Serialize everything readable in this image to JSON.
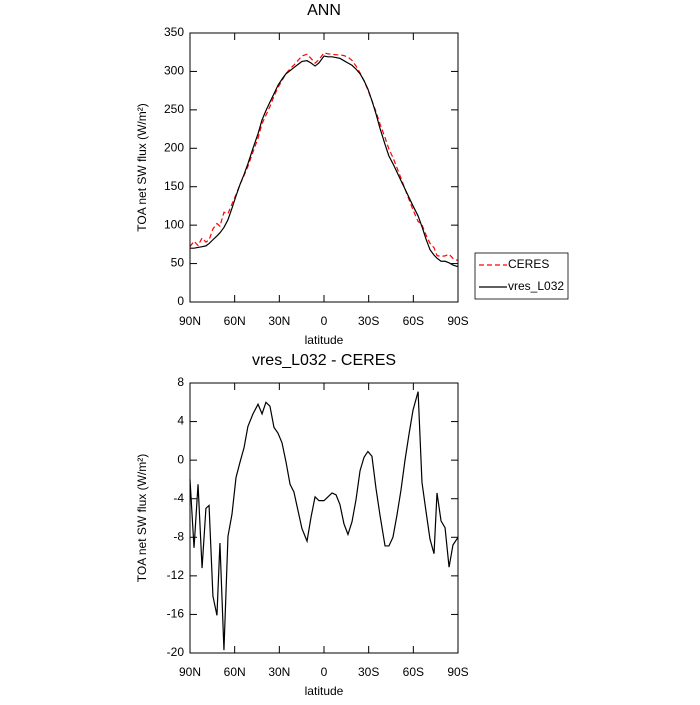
{
  "chart_data": [
    {
      "type": "line",
      "title": "ANN",
      "xlabel": "latitude",
      "ylabel": "TOA net SW flux (W/m²)",
      "x": [
        90,
        87.3,
        84.6,
        81.9,
        79.3,
        77.2,
        74.6,
        71.9,
        69.9,
        67.2,
        64.5,
        61.8,
        59.1,
        56.4,
        53.7,
        51.1,
        47.7,
        44.3,
        41.6,
        39.0,
        36.3,
        33.6,
        30.9,
        28.2,
        25.5,
        22.8,
        20.2,
        17.5,
        14.8,
        11.4,
        8.7,
        6.0,
        3.4,
        0,
        -2.7,
        -5.4,
        -8.1,
        -10.7,
        -13.4,
        -16.1,
        -18.8,
        -21.5,
        -24.2,
        -26.9,
        -29.5,
        -32.2,
        -34.9,
        -37.6,
        -41.0,
        -43.6,
        -46.3,
        -49.0,
        -51.7,
        -54.4,
        -57.1,
        -59.8,
        -63.2,
        -65.8,
        -68.5,
        -71.2,
        -73.9,
        -75.9,
        -78.6,
        -81.3,
        -84.0,
        -86.6,
        -90
      ],
      "series": [
        {
          "name": "CERES",
          "color": "#ff0000",
          "style": "dashed",
          "values": [
            72,
            79.1,
            73.5,
            83.2,
            78,
            80.7,
            95.1,
            102.1,
            98.6,
            116.7,
            114.9,
            127.6,
            139.8,
            153.2,
            164.7,
            176.5,
            195.2,
            213.2,
            232.2,
            243,
            254.4,
            267.6,
            279.2,
            288.2,
            297.2,
            303.5,
            308.3,
            314.2,
            320.1,
            322.4,
            316.9,
            310.8,
            315.2,
            324.2,
            322.8,
            322.4,
            321.6,
            321.6,
            320.6,
            318.7,
            314.4,
            307.1,
            298.1,
            287.7,
            276.1,
            261.6,
            247.9,
            231.7,
            213.9,
            198.9,
            188,
            174.7,
            161.1,
            147,
            133.3,
            119.8,
            104.9,
            100.3,
            87.3,
            76.2,
            70.7,
            60.4,
            59.3,
            60,
            62.1,
            56.8,
            54
          ]
        },
        {
          "name": "vres_L032",
          "color": "#000000",
          "style": "solid",
          "values": [
            70,
            70,
            71,
            72,
            73,
            76,
            81,
            86,
            90,
            97,
            107,
            122,
            138,
            153,
            166,
            180,
            200,
            219,
            237,
            249,
            260,
            271,
            282,
            290,
            297,
            301,
            305,
            309,
            313,
            314,
            311,
            307,
            311,
            320,
            319,
            319,
            318,
            317,
            314,
            311,
            308,
            303,
            297,
            288,
            277,
            262,
            245,
            226,
            205,
            190,
            180,
            169,
            158,
            147,
            136,
            125,
            112,
            98,
            82,
            68,
            61,
            57,
            53,
            53,
            51,
            48,
            46
          ]
        }
      ],
      "xlim": [
        90,
        -90
      ],
      "xticks": [
        {
          "value": 90,
          "label": "90N"
        },
        {
          "value": 60,
          "label": "60N"
        },
        {
          "value": 30,
          "label": "30N"
        },
        0,
        {
          "value": -30,
          "label": "30S"
        },
        {
          "value": -60,
          "label": "60S"
        },
        {
          "value": -90,
          "label": "90S"
        }
      ],
      "ylim": [
        0,
        350
      ],
      "yticks": [
        0,
        50,
        100,
        150,
        200,
        250,
        300,
        350
      ],
      "legend": "right"
    },
    {
      "type": "line",
      "title": "vres_L032 - CERES",
      "xlabel": "latitude",
      "ylabel": "TOA net SW flux (W/m²)",
      "x": [
        90,
        87.3,
        84.6,
        81.9,
        79.3,
        77.2,
        74.6,
        71.9,
        69.9,
        67.2,
        64.5,
        61.8,
        59.1,
        56.4,
        53.7,
        51.1,
        47.7,
        44.3,
        41.6,
        39.0,
        36.3,
        33.6,
        30.9,
        28.2,
        25.5,
        22.8,
        20.2,
        17.5,
        14.8,
        11.4,
        8.7,
        6.0,
        3.4,
        0,
        -2.7,
        -5.4,
        -8.1,
        -10.7,
        -13.4,
        -16.1,
        -18.8,
        -21.5,
        -24.2,
        -26.9,
        -29.5,
        -32.2,
        -34.9,
        -37.6,
        -41.0,
        -43.6,
        -46.3,
        -49.0,
        -51.7,
        -54.4,
        -57.1,
        -59.8,
        -63.2,
        -65.8,
        -68.5,
        -71.2,
        -73.9,
        -75.9,
        -78.6,
        -81.3,
        -84.0,
        -86.6,
        -90
      ],
      "series": [
        {
          "color": "#000000",
          "style": "solid",
          "values": [
            -2.0,
            -9.1,
            -2.5,
            -11.2,
            -5.0,
            -4.7,
            -14.1,
            -16.1,
            -8.6,
            -19.7,
            -7.9,
            -5.6,
            -1.8,
            -0.2,
            1.3,
            3.5,
            4.8,
            5.8,
            4.8,
            6.0,
            5.6,
            3.4,
            2.8,
            1.8,
            -0.2,
            -2.5,
            -3.3,
            -5.2,
            -7.1,
            -8.4,
            -5.9,
            -3.8,
            -4.2,
            -4.2,
            -3.8,
            -3.4,
            -3.6,
            -4.6,
            -6.6,
            -7.7,
            -6.4,
            -4.1,
            -1.1,
            0.3,
            0.9,
            0.4,
            -2.9,
            -5.7,
            -8.9,
            -8.9,
            -8.0,
            -5.7,
            -3.1,
            0.0,
            2.7,
            5.2,
            7.1,
            -2.3,
            -5.3,
            -8.2,
            -9.7,
            -3.4,
            -6.3,
            -7.0,
            -11.1,
            -8.8,
            -8.0
          ]
        }
      ],
      "xlim": [
        90,
        -90
      ],
      "xticks": [
        {
          "value": 90,
          "label": "90N"
        },
        {
          "value": 60,
          "label": "60N"
        },
        {
          "value": 30,
          "label": "30N"
        },
        0,
        {
          "value": -30,
          "label": "30S"
        },
        {
          "value": -60,
          "label": "60S"
        },
        {
          "value": -90,
          "label": "90S"
        }
      ],
      "ylim": [
        -20,
        8
      ],
      "yticks": [
        -20,
        -16,
        -12,
        -8,
        -4,
        0,
        4,
        8
      ]
    }
  ]
}
